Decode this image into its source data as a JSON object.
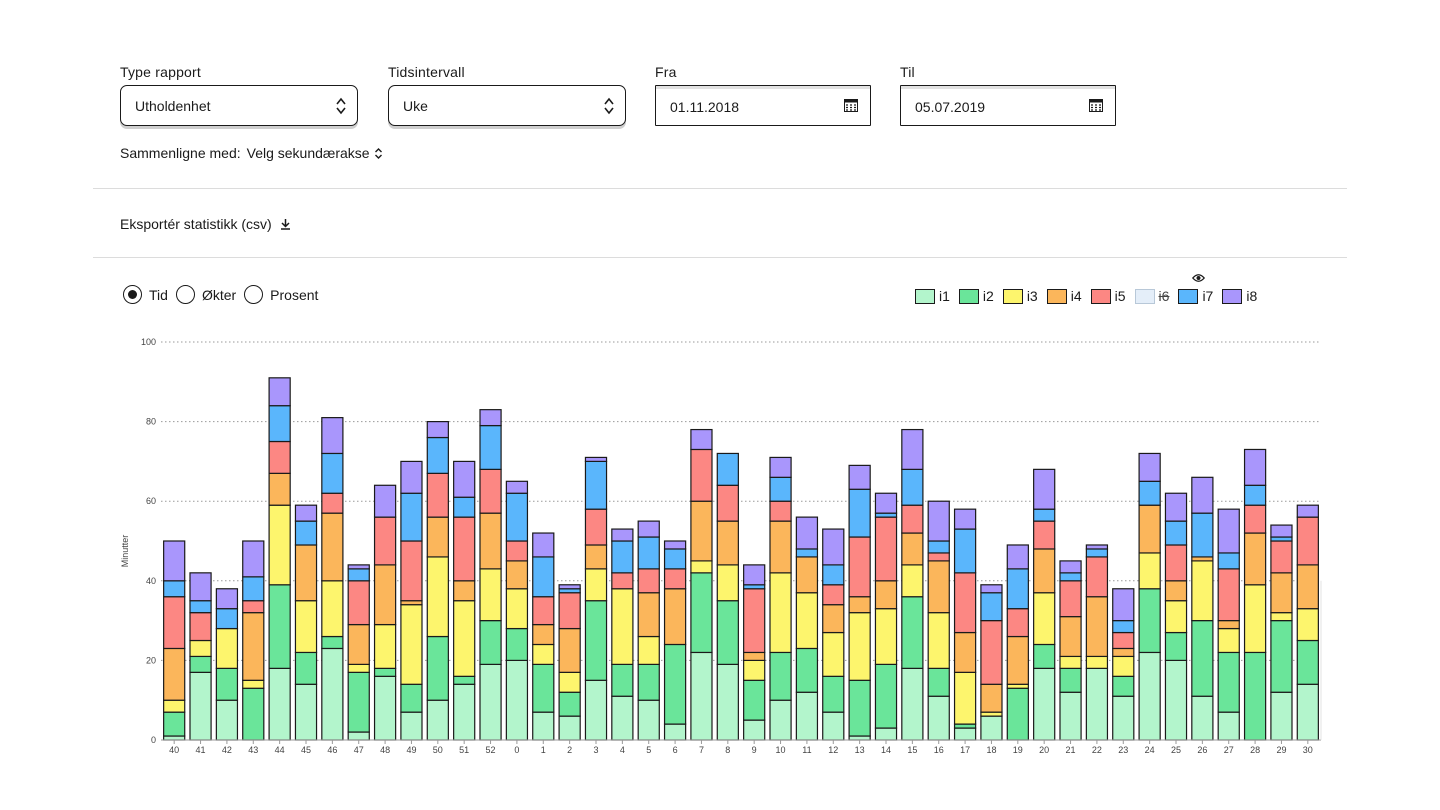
{
  "filters": {
    "report_type": {
      "label": "Type rapport",
      "value": "Utholdenhet"
    },
    "interval": {
      "label": "Tidsintervall",
      "value": "Uke"
    },
    "from": {
      "label": "Fra",
      "value": "01.11.2018"
    },
    "to": {
      "label": "Til",
      "value": "05.07.2019"
    },
    "compare_label": "Sammenligne med:",
    "compare_value": "Velg sekundærakse"
  },
  "export_label": "Eksportér statistikk (csv)",
  "view_modes": [
    {
      "label": "Tid",
      "selected": true
    },
    {
      "label": "Økter",
      "selected": false
    },
    {
      "label": "Prosent",
      "selected": false
    }
  ],
  "chart_data": {
    "type": "bar",
    "stacked": true,
    "ylabel": "Minutter",
    "ylim": [
      0,
      100
    ],
    "yticks": [
      0,
      20,
      40,
      60,
      80,
      100
    ],
    "grid": "horizontal-dotted",
    "legend_position": "top-right",
    "categories": [
      "40",
      "41",
      "42",
      "43",
      "44",
      "45",
      "46",
      "47",
      "48",
      "49",
      "50",
      "51",
      "52",
      "0",
      "1",
      "2",
      "3",
      "4",
      "5",
      "6",
      "7",
      "8",
      "9",
      "10",
      "11",
      "12",
      "13",
      "14",
      "15",
      "16",
      "17",
      "18",
      "19",
      "20",
      "21",
      "22",
      "23",
      "24",
      "25",
      "26",
      "27",
      "28",
      "29",
      "30"
    ],
    "series": [
      {
        "name": "i1",
        "color": "#b3f5cc",
        "hidden": false,
        "values": [
          1,
          17,
          10,
          0,
          18,
          14,
          23,
          2,
          16,
          7,
          10,
          14,
          19,
          20,
          7,
          6,
          15,
          11,
          10,
          4,
          22,
          19,
          5,
          10,
          12,
          7,
          1,
          3,
          18,
          11,
          3,
          6,
          0,
          18,
          12,
          18,
          11,
          22,
          20,
          11,
          7,
          0,
          12,
          14
        ]
      },
      {
        "name": "i2",
        "color": "#6ae59a",
        "hidden": false,
        "values": [
          6,
          4,
          8,
          13,
          21,
          8,
          3,
          15,
          2,
          7,
          16,
          2,
          11,
          8,
          12,
          6,
          20,
          8,
          9,
          20,
          20,
          16,
          10,
          12,
          11,
          9,
          14,
          16,
          18,
          7,
          1,
          0,
          13,
          6,
          6,
          0,
          5,
          16,
          7,
          19,
          15,
          22,
          18,
          11
        ]
      },
      {
        "name": "i3",
        "color": "#fdf56d",
        "hidden": false,
        "values": [
          3,
          4,
          10,
          2,
          20,
          13,
          14,
          2,
          11,
          20,
          20,
          19,
          13,
          10,
          5,
          5,
          8,
          19,
          7,
          0,
          3,
          9,
          5,
          20,
          14,
          11,
          17,
          14,
          8,
          14,
          13,
          1,
          1,
          13,
          3,
          3,
          5,
          9,
          8,
          15,
          6,
          17,
          2,
          8
        ]
      },
      {
        "name": "i4",
        "color": "#fbb65b",
        "hidden": false,
        "values": [
          13,
          0,
          0,
          17,
          8,
          14,
          17,
          10,
          15,
          1,
          10,
          5,
          14,
          7,
          5,
          11,
          6,
          0,
          11,
          14,
          15,
          11,
          2,
          13,
          9,
          7,
          4,
          7,
          8,
          13,
          10,
          7,
          12,
          11,
          10,
          15,
          2,
          12,
          5,
          1,
          2,
          13,
          10,
          11
        ]
      },
      {
        "name": "i5",
        "color": "#fc8783",
        "hidden": false,
        "values": [
          13,
          7,
          0,
          3,
          8,
          0,
          5,
          11,
          12,
          15,
          11,
          16,
          11,
          5,
          7,
          9,
          9,
          4,
          6,
          5,
          13,
          9,
          16,
          5,
          0,
          5,
          15,
          16,
          7,
          2,
          15,
          16,
          7,
          7,
          9,
          10,
          4,
          0,
          9,
          0,
          13,
          7,
          8,
          12
        ]
      },
      {
        "name": "i6",
        "color": "#e4eef9",
        "hidden": true,
        "values": [
          0,
          0,
          0,
          0,
          0,
          0,
          0,
          0,
          0,
          0,
          0,
          0,
          0,
          0,
          0,
          0,
          0,
          0,
          0,
          0,
          0,
          0,
          0,
          0,
          0,
          0,
          0,
          0,
          0,
          0,
          0,
          0,
          0,
          0,
          0,
          0,
          0,
          0,
          0,
          0,
          0,
          0,
          0,
          0
        ]
      },
      {
        "name": "i7",
        "color": "#5ab6fc",
        "hidden": false,
        "values": [
          4,
          3,
          5,
          6,
          9,
          6,
          10,
          3,
          0,
          12,
          9,
          5,
          11,
          12,
          10,
          1,
          12,
          8,
          8,
          5,
          0,
          8,
          1,
          6,
          2,
          5,
          12,
          1,
          9,
          3,
          11,
          7,
          10,
          3,
          2,
          2,
          3,
          6,
          6,
          11,
          4,
          5,
          1,
          0
        ]
      },
      {
        "name": "i8",
        "color": "#a996fc",
        "hidden": false,
        "values": [
          10,
          7,
          5,
          9,
          7,
          4,
          9,
          1,
          8,
          8,
          4,
          9,
          4,
          3,
          6,
          1,
          1,
          3,
          4,
          2,
          5,
          0,
          5,
          5,
          8,
          9,
          6,
          5,
          10,
          10,
          5,
          2,
          6,
          10,
          3,
          1,
          8,
          7,
          7,
          9,
          11,
          9,
          3,
          3
        ]
      }
    ]
  }
}
